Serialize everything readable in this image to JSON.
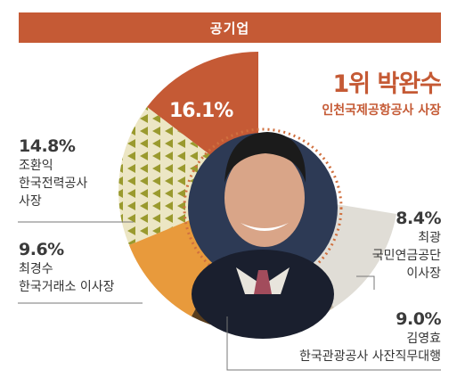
{
  "header": {
    "title": "공기업"
  },
  "winner": {
    "rank_name": "1위 박완수",
    "org_title": "인천국제공항공사 사장"
  },
  "chart_data": {
    "type": "pie",
    "title": "공기업",
    "slices": [
      {
        "label": "박완수 인천국제공항공사 사장",
        "name": "박완수",
        "org": "인천국제공항공사 사장",
        "value": 16.1,
        "display": "16.1%",
        "color": "#c55a35"
      },
      {
        "label": "최광 국민연금공단 이사장",
        "name": "최광",
        "org1": "국민연금공단",
        "org2": "이사장",
        "value": 8.4,
        "display": "8.4%",
        "color": "#e0ddd6"
      },
      {
        "label": "김영효 한국관광공사 사잔직무대행",
        "name": "김영효",
        "org": "한국관광공사 사잔직무대행",
        "value": 9.0,
        "display": "9.0%",
        "color": "#c9bfad"
      },
      {
        "label": "조환익 한국전력공사 사장",
        "name": "조환익",
        "org1": "한국전력공사",
        "org2": "사장",
        "value": 14.8,
        "display": "14.8%",
        "color": "#a59a3a"
      },
      {
        "label": "최경수 한국거래소 이사장",
        "name": "최경수",
        "org": "한국거래소 이사장",
        "value": 9.6,
        "display": "9.6%",
        "color": "#e89a3c"
      }
    ],
    "extra_segment_colors": [
      "#5a3d1c"
    ]
  }
}
